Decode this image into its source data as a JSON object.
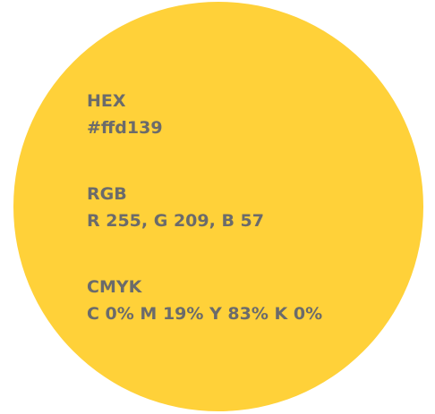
{
  "swatch": {
    "color": "#ffd139",
    "sections": [
      {
        "label": "HEX",
        "value": "#ffd139"
      },
      {
        "label": "RGB",
        "value": "R 255, G 209, B 57"
      },
      {
        "label": "CMYK",
        "value": "C 0% M 19% Y 83% K 0%"
      }
    ]
  }
}
